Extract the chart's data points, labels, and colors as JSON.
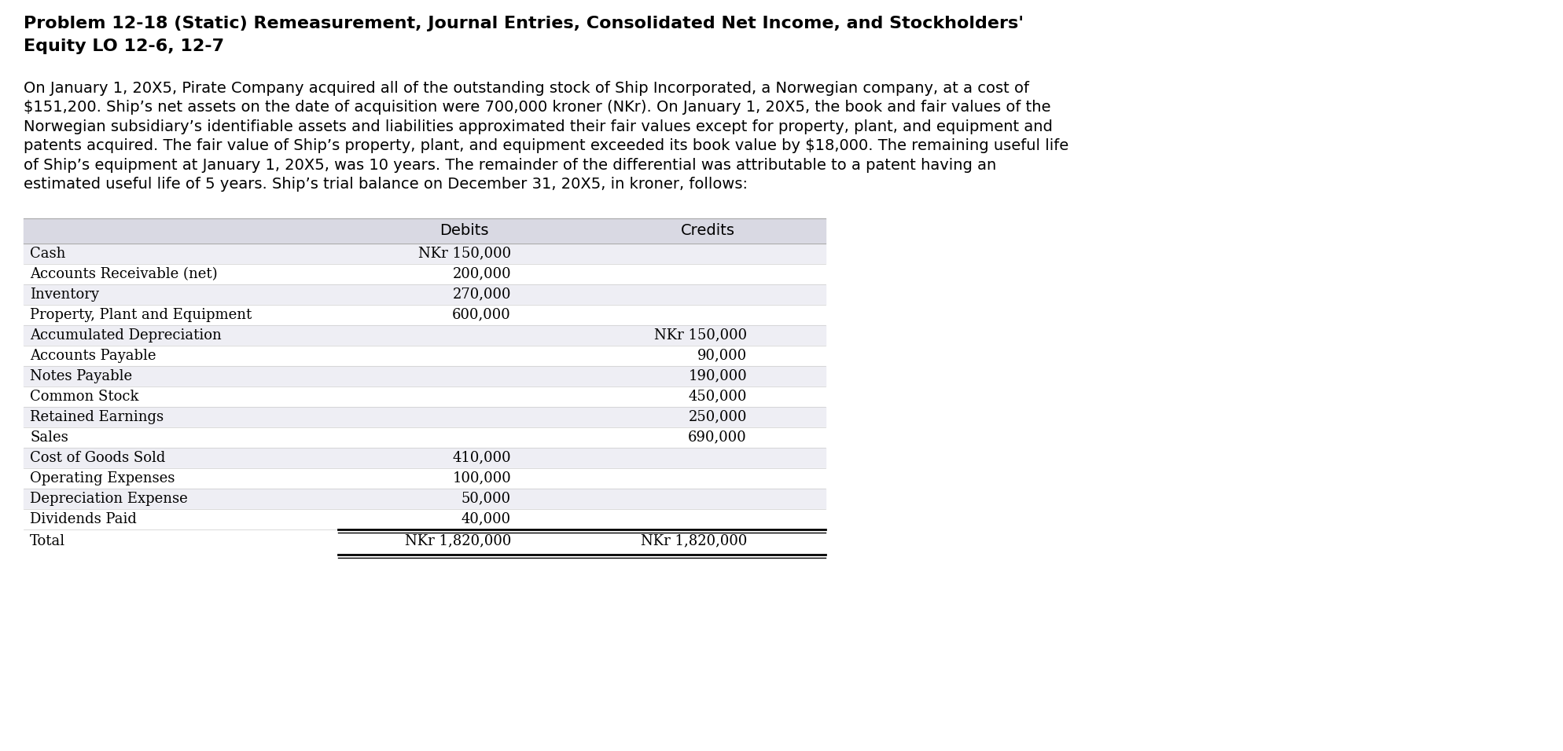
{
  "title_line1": "Problem 12-18 (Static) Remeasurement, Journal Entries, Consolidated Net Income, and Stockholders'",
  "title_line2": "Equity LO 12-6, 12-7",
  "para_lines": [
    "On January 1, 20X5, Pirate Company acquired all of the outstanding stock of Ship Incorporated, a Norwegian company, at a cost of",
    "$151,200. Ship’s net assets on the date of acquisition were 700,000 kroner (NKr). On January 1, 20X5, the book and fair values of the",
    "Norwegian subsidiary’s identifiable assets and liabilities approximated their fair values except for property, plant, and equipment and",
    "patents acquired. The fair value of Ship’s property, plant, and equipment exceeded its book value by $18,000. The remaining useful life",
    "of Ship’s equipment at January 1, 20X5, was 10 years. The remainder of the differential was attributable to a patent having an",
    "estimated useful life of 5 years. Ship’s trial balance on December 31, 20X5, in kroner, follows:"
  ],
  "table_rows": [
    [
      "Cash",
      "NKr 150,000",
      ""
    ],
    [
      "Accounts Receivable (net)",
      "200,000",
      ""
    ],
    [
      "Inventory",
      "270,000",
      ""
    ],
    [
      "Property, Plant and Equipment",
      "600,000",
      ""
    ],
    [
      "Accumulated Depreciation",
      "",
      "NKr 150,000"
    ],
    [
      "Accounts Payable",
      "",
      "90,000"
    ],
    [
      "Notes Payable",
      "",
      "190,000"
    ],
    [
      "Common Stock",
      "",
      "450,000"
    ],
    [
      "Retained Earnings",
      "",
      "250,000"
    ],
    [
      "Sales",
      "",
      "690,000"
    ],
    [
      "Cost of Goods Sold",
      "410,000",
      ""
    ],
    [
      "Operating Expenses",
      "100,000",
      ""
    ],
    [
      "Depreciation Expense",
      "50,000",
      ""
    ],
    [
      "Dividends Paid",
      "40,000",
      ""
    ]
  ],
  "table_total_row": [
    "Total",
    "NKr 1,820,000",
    "NKr 1,820,000"
  ],
  "bg_color": "#ffffff",
  "header_bg_color": "#d9d9e3",
  "row_alt_color": "#eeeef4",
  "row_plain_color": "#ffffff",
  "title_fontsize": 16,
  "para_fontsize": 14,
  "table_fontsize": 13,
  "header_fontsize": 14
}
